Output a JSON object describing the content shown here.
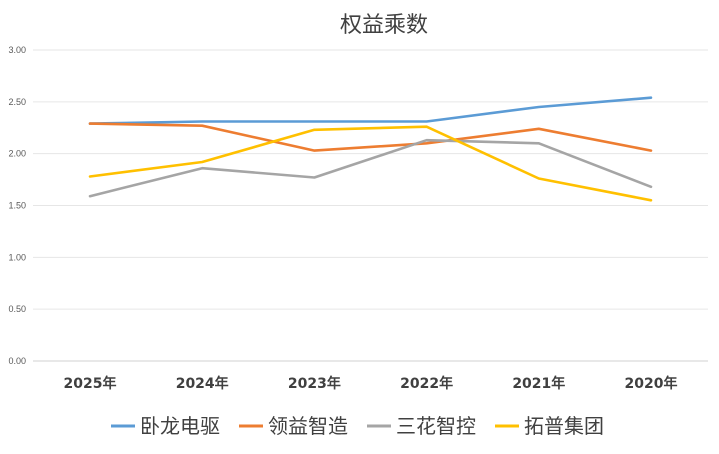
{
  "chart_data": {
    "type": "line",
    "title": "权益乘数",
    "xlabel": "",
    "ylabel": "",
    "categories": [
      "2025年",
      "2024年",
      "2023年",
      "2022年",
      "2021年",
      "2020年"
    ],
    "ylim": [
      0,
      3
    ],
    "yticks": [
      "0.00",
      "0.50",
      "1.00",
      "1.50",
      "2.00",
      "2.50",
      "3.00"
    ],
    "grid": true,
    "legend_position": "bottom",
    "series": [
      {
        "name": "卧龙电驱",
        "color": "#5B9BD5",
        "values": [
          2.29,
          2.31,
          2.31,
          2.31,
          2.45,
          2.54
        ]
      },
      {
        "name": "领益智造",
        "color": "#ED7D31",
        "values": [
          2.29,
          2.27,
          2.03,
          2.1,
          2.24,
          2.03
        ]
      },
      {
        "name": "三花智控",
        "color": "#A5A5A5",
        "values": [
          1.59,
          1.86,
          1.77,
          2.13,
          2.1,
          1.68
        ]
      },
      {
        "name": "拓普集团",
        "color": "#FFC000",
        "values": [
          1.78,
          1.92,
          2.23,
          2.26,
          1.76,
          1.55
        ]
      }
    ]
  }
}
